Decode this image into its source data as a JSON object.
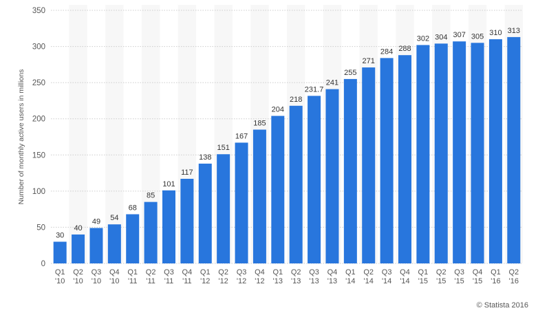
{
  "chart_data": {
    "type": "bar",
    "title": "",
    "xlabel": "",
    "ylabel": "Number of monthly active users in millions",
    "ylim": [
      0,
      350
    ],
    "yticks": [
      0,
      50,
      100,
      150,
      200,
      250,
      300,
      350
    ],
    "grid": true,
    "legend": "none",
    "categories": [
      [
        "Q1",
        "'10"
      ],
      [
        "Q2",
        "'10"
      ],
      [
        "Q3",
        "'10"
      ],
      [
        "Q4",
        "'10"
      ],
      [
        "Q1",
        "'11"
      ],
      [
        "Q2",
        "'11"
      ],
      [
        "Q3",
        "'11"
      ],
      [
        "Q4",
        "'11"
      ],
      [
        "Q1",
        "'12"
      ],
      [
        "Q2",
        "'12"
      ],
      [
        "Q3",
        "'12"
      ],
      [
        "Q4",
        "'12"
      ],
      [
        "Q1",
        "'13"
      ],
      [
        "Q2",
        "'13"
      ],
      [
        "Q3",
        "'13"
      ],
      [
        "Q4",
        "'13"
      ],
      [
        "Q1",
        "'14"
      ],
      [
        "Q2",
        "'14"
      ],
      [
        "Q3",
        "'14"
      ],
      [
        "Q4",
        "'14"
      ],
      [
        "Q1",
        "'15"
      ],
      [
        "Q2",
        "'15"
      ],
      [
        "Q3",
        "'15"
      ],
      [
        "Q4",
        "'15"
      ],
      [
        "Q1",
        "'16"
      ],
      [
        "Q2",
        "'16"
      ]
    ],
    "values": [
      30,
      40,
      49,
      54,
      68,
      85,
      101,
      117,
      138,
      151,
      167,
      185,
      204,
      218,
      231.7,
      241,
      255,
      271,
      284,
      288,
      302,
      304,
      307,
      305,
      310,
      313
    ],
    "data_labels": [
      "30",
      "40",
      "49",
      "54",
      "68",
      "85",
      "101",
      "117",
      "138",
      "151",
      "167",
      "185",
      "204",
      "218",
      "231.7",
      "241",
      "255",
      "271",
      "284",
      "288",
      "302",
      "304",
      "307",
      "305",
      "310",
      "313"
    ]
  },
  "colors": {
    "bar": "#2876dd",
    "band": "#f7f7f7",
    "grid": "#cccccc",
    "axis_text": "#555555"
  },
  "credit": "© Statista 2016"
}
